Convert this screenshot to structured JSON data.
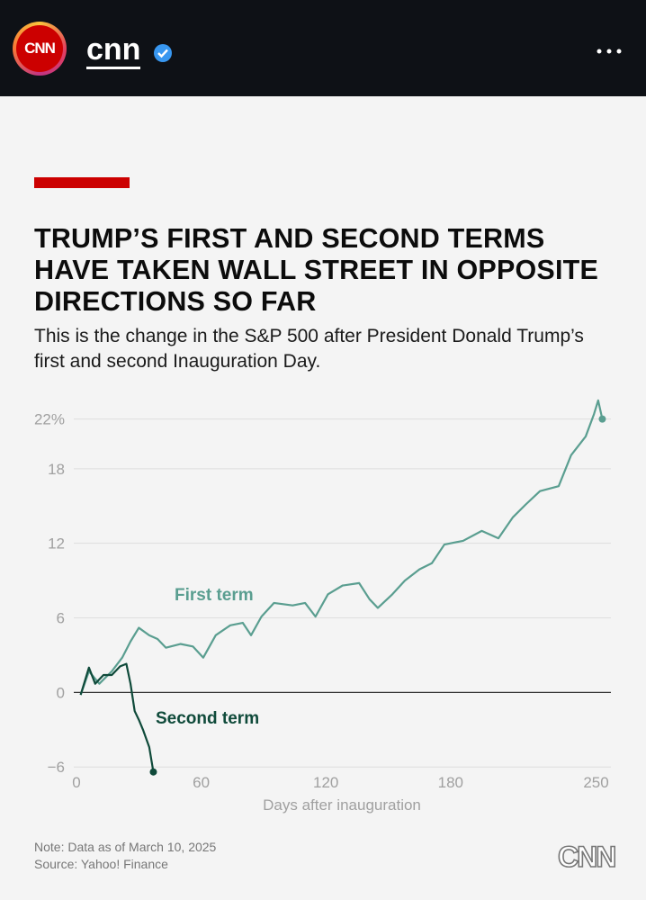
{
  "header": {
    "logo": "CNN",
    "username": "cnn"
  },
  "footer": {
    "note": "Note: Data as of March 10, 2025",
    "source": "Source: Yahoo! Finance",
    "brand": "CNN"
  },
  "chart_data": {
    "type": "line",
    "title": "TRUMP’S FIRST AND SECOND TERMS HAVE TAKEN WALL STREET IN OPPOSITE DIRECTIONS SO FAR",
    "subtitle": "This is the change in the S&P 500 after President Donald Trump’s first and second Inauguration Day.",
    "x_label": "Days after inauguration",
    "xlim": [
      0,
      258
    ],
    "ylim": [
      -7,
      24
    ],
    "xticks": [
      0,
      60,
      120,
      180,
      250
    ],
    "yticks": [
      {
        "value": 22,
        "label": "22%"
      },
      18,
      12,
      6,
      0,
      {
        "value": -6,
        "label": "−6"
      }
    ],
    "grid": true,
    "series": [
      {
        "name": "First term",
        "color": "#5a9e90",
        "x": [
          2,
          6,
          11,
          17,
          22,
          26,
          30,
          35,
          39,
          43,
          50,
          56,
          61,
          67,
          74,
          80,
          84,
          89,
          95,
          104,
          110,
          115,
          121,
          128,
          136,
          141,
          145,
          152,
          158,
          165,
          171,
          177,
          186,
          195,
          203,
          210,
          216,
          223,
          232,
          238,
          245,
          249,
          251,
          253
        ],
        "values": [
          -0.2,
          1.7,
          0.7,
          1.7,
          2.8,
          4.1,
          5.2,
          4.6,
          4.3,
          3.6,
          3.9,
          3.7,
          2.8,
          4.6,
          5.4,
          5.6,
          4.6,
          6.1,
          7.2,
          7.0,
          7.2,
          6.1,
          7.9,
          8.6,
          8.8,
          7.5,
          6.8,
          7.9,
          9.0,
          9.9,
          10.4,
          11.9,
          12.2,
          13.0,
          12.4,
          14.1,
          15.1,
          16.2,
          16.6,
          19.1,
          20.6,
          22.4,
          23.5,
          22.0
        ]
      },
      {
        "name": "Second term",
        "color": "#0f4a3a",
        "x": [
          2,
          6,
          9,
          13,
          17,
          21,
          24,
          26,
          28,
          30,
          32,
          35,
          37
        ],
        "values": [
          -0.2,
          2.0,
          0.7,
          1.4,
          1.4,
          2.1,
          2.3,
          0.7,
          -1.5,
          -2.2,
          -3.0,
          -4.4,
          -6.4
        ]
      }
    ]
  }
}
